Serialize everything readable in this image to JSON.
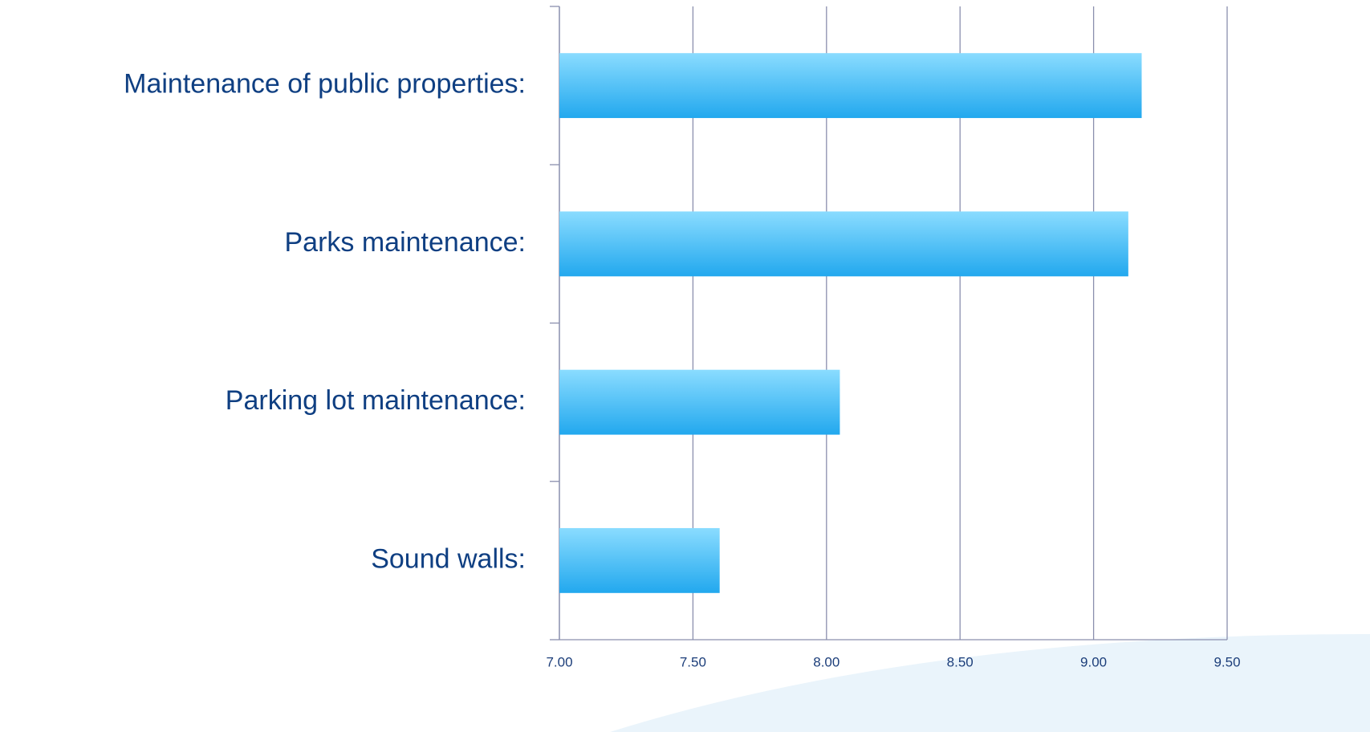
{
  "chart_data": {
    "type": "bar",
    "orientation": "horizontal",
    "categories": [
      "Maintenance of public properties:",
      "Parks maintenance:",
      "Parking lot maintenance:",
      "Sound walls:"
    ],
    "values": [
      9.18,
      9.13,
      8.05,
      7.6
    ],
    "color": "#22a8ee",
    "xlim": [
      7,
      9.5
    ],
    "xticks": [
      {
        "value": 7,
        "label": "7.00"
      },
      {
        "value": 7.5,
        "label": "7.50"
      },
      {
        "value": 8,
        "label": "8.00"
      },
      {
        "value": 8.5,
        "label": "8.50"
      },
      {
        "value": 9,
        "label": "9.00"
      },
      {
        "value": 9.5,
        "label": "9.50"
      }
    ],
    "grid": true
  }
}
